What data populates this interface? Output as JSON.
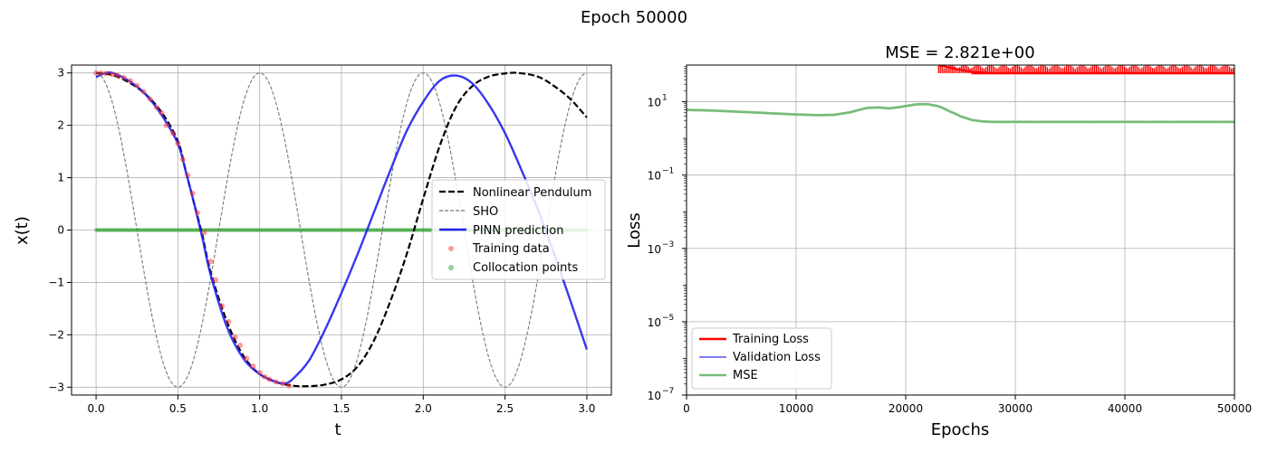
{
  "figure": {
    "suptitle": "Epoch 50000"
  },
  "chart_data": [
    {
      "type": "line",
      "title": "",
      "xlabel": "t",
      "ylabel": "x(t)",
      "xlim": [
        -0.15,
        3.15
      ],
      "ylim": [
        -3.15,
        3.15
      ],
      "xticks": [
        0.0,
        0.5,
        1.0,
        1.5,
        2.0,
        2.5,
        3.0
      ],
      "xtick_labels": [
        "0.0",
        "0.5",
        "1.0",
        "1.5",
        "2.0",
        "2.5",
        "3.0"
      ],
      "yticks": [
        -3,
        -2,
        -1,
        0,
        1,
        2,
        3
      ],
      "ytick_labels": [
        "−3",
        "−2",
        "−1",
        "0",
        "1",
        "2",
        "3"
      ],
      "grid": true,
      "legend_position": "center-right",
      "series": [
        {
          "name": "Nonlinear Pendulum",
          "style": "dashed",
          "color": "#000000",
          "points": [
            [
              0.0,
              3.0
            ],
            [
              0.1,
              2.96
            ],
            [
              0.2,
              2.82
            ],
            [
              0.3,
              2.6
            ],
            [
              0.4,
              2.25
            ],
            [
              0.5,
              1.7
            ],
            [
              0.55,
              1.1
            ],
            [
              0.6,
              0.5
            ],
            [
              0.65,
              -0.1
            ],
            [
              0.7,
              -0.8
            ],
            [
              0.8,
              -1.75
            ],
            [
              0.9,
              -2.4
            ],
            [
              1.0,
              -2.75
            ],
            [
              1.1,
              -2.9
            ],
            [
              1.2,
              -2.97
            ],
            [
              1.3,
              -2.98
            ],
            [
              1.4,
              -2.95
            ],
            [
              1.5,
              -2.85
            ],
            [
              1.6,
              -2.6
            ],
            [
              1.7,
              -2.1
            ],
            [
              1.8,
              -1.35
            ],
            [
              1.9,
              -0.45
            ],
            [
              2.0,
              0.6
            ],
            [
              2.1,
              1.6
            ],
            [
              2.2,
              2.35
            ],
            [
              2.3,
              2.75
            ],
            [
              2.4,
              2.93
            ],
            [
              2.5,
              2.99
            ],
            [
              2.58,
              3.0
            ],
            [
              2.7,
              2.93
            ],
            [
              2.8,
              2.75
            ],
            [
              2.9,
              2.5
            ],
            [
              3.0,
              2.15
            ]
          ]
        },
        {
          "name": "SHO",
          "style": "dashed-thin",
          "color": "#777777",
          "function": "3*cos(2*pi*t)"
        },
        {
          "name": "PINN prediction",
          "style": "solid",
          "color": "#2222ee",
          "points": [
            [
              0.0,
              2.92
            ],
            [
              0.05,
              2.99
            ],
            [
              0.1,
              3.0
            ],
            [
              0.2,
              2.85
            ],
            [
              0.3,
              2.6
            ],
            [
              0.4,
              2.2
            ],
            [
              0.5,
              1.65
            ],
            [
              0.55,
              1.1
            ],
            [
              0.6,
              0.5
            ],
            [
              0.65,
              -0.15
            ],
            [
              0.7,
              -0.85
            ],
            [
              0.8,
              -1.85
            ],
            [
              0.9,
              -2.45
            ],
            [
              1.0,
              -2.75
            ],
            [
              1.1,
              -2.9
            ],
            [
              1.15,
              -2.93
            ],
            [
              1.2,
              -2.85
            ],
            [
              1.3,
              -2.5
            ],
            [
              1.4,
              -1.9
            ],
            [
              1.5,
              -1.2
            ],
            [
              1.6,
              -0.45
            ],
            [
              1.7,
              0.35
            ],
            [
              1.8,
              1.15
            ],
            [
              1.9,
              1.9
            ],
            [
              2.0,
              2.45
            ],
            [
              2.1,
              2.85
            ],
            [
              2.2,
              2.95
            ],
            [
              2.3,
              2.8
            ],
            [
              2.4,
              2.4
            ],
            [
              2.5,
              1.85
            ],
            [
              2.6,
              1.15
            ],
            [
              2.7,
              0.4
            ],
            [
              2.8,
              -0.45
            ],
            [
              2.9,
              -1.35
            ],
            [
              3.0,
              -2.28
            ]
          ]
        }
      ],
      "scatter": [
        {
          "name": "Training data",
          "color": "#ff3333",
          "points": [
            [
              0.0,
              3.0
            ],
            [
              0.03,
              3.0
            ],
            [
              0.06,
              2.99
            ],
            [
              0.1,
              2.97
            ],
            [
              0.13,
              2.95
            ],
            [
              0.17,
              2.91
            ],
            [
              0.21,
              2.85
            ],
            [
              0.25,
              2.76
            ],
            [
              0.29,
              2.64
            ],
            [
              0.33,
              2.5
            ],
            [
              0.37,
              2.34
            ],
            [
              0.4,
              2.24
            ],
            [
              0.43,
              2.0
            ],
            [
              0.47,
              1.85
            ],
            [
              0.5,
              1.65
            ],
            [
              0.53,
              1.35
            ],
            [
              0.56,
              1.05
            ],
            [
              0.59,
              0.7
            ],
            [
              0.62,
              0.33
            ],
            [
              0.66,
              -0.05
            ],
            [
              0.7,
              -0.6
            ],
            [
              0.73,
              -0.95
            ],
            [
              0.77,
              -1.45
            ],
            [
              0.81,
              -1.75
            ],
            [
              0.85,
              -2.05
            ],
            [
              0.88,
              -2.2
            ],
            [
              0.92,
              -2.45
            ],
            [
              0.96,
              -2.6
            ],
            [
              1.0,
              -2.72
            ],
            [
              1.03,
              -2.8
            ],
            [
              1.06,
              -2.85
            ],
            [
              1.1,
              -2.9
            ],
            [
              1.14,
              -2.93
            ],
            [
              1.18,
              -2.97
            ]
          ]
        },
        {
          "name": "Collocation points",
          "color": "#2ca02c",
          "x_range": [
            0.0,
            3.0
          ],
          "count": 301,
          "y": 0
        }
      ]
    },
    {
      "type": "line",
      "title": "MSE = 2.821e+00",
      "xlabel": "Epochs",
      "ylabel": "Loss",
      "yscale": "log",
      "xlim": [
        0,
        50000
      ],
      "ylim": [
        1e-07,
        100
      ],
      "xticks": [
        0,
        10000,
        20000,
        30000,
        40000,
        50000
      ],
      "xtick_labels": [
        "0",
        "10000",
        "20000",
        "30000",
        "40000",
        "50000"
      ],
      "yticks_exp": [
        -7,
        -5,
        -3,
        -1,
        1
      ],
      "grid": true,
      "legend_position": "lower-left",
      "series": [
        {
          "name": "Training Loss",
          "color": "#ff0000",
          "x_start": 23000,
          "band_low": 60,
          "band_high": 100,
          "entry_points": [
            [
              23000,
              100
            ],
            [
              24500,
              80
            ],
            [
              26000,
              65
            ],
            [
              27500,
              62
            ]
          ]
        },
        {
          "name": "Validation Loss",
          "color": "#5555ee",
          "note_hidden": true,
          "points": []
        },
        {
          "name": "MSE",
          "color": "#77bb77",
          "points": [
            [
              0,
              6.0
            ],
            [
              2000,
              5.8
            ],
            [
              5000,
              5.3
            ],
            [
              8000,
              4.8
            ],
            [
              10000,
              4.5
            ],
            [
              12000,
              4.3
            ],
            [
              13500,
              4.4
            ],
            [
              15000,
              5.2
            ],
            [
              16500,
              6.8
            ],
            [
              17500,
              7.0
            ],
            [
              18500,
              6.6
            ],
            [
              19500,
              7.2
            ],
            [
              21000,
              8.5
            ],
            [
              22000,
              8.6
            ],
            [
              23000,
              7.5
            ],
            [
              24000,
              5.5
            ],
            [
              25000,
              4.0
            ],
            [
              26000,
              3.2
            ],
            [
              27000,
              2.9
            ],
            [
              28000,
              2.82
            ],
            [
              30000,
              2.821
            ],
            [
              40000,
              2.821
            ],
            [
              50000,
              2.821
            ]
          ]
        }
      ]
    }
  ]
}
